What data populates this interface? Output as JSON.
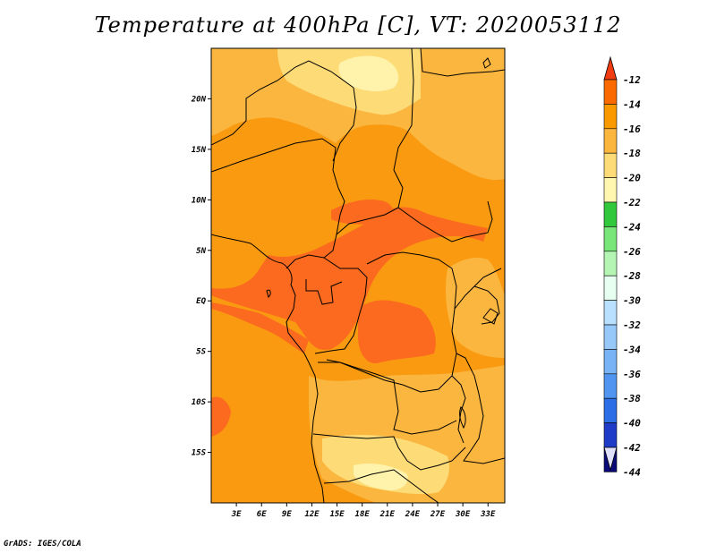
{
  "title": "Temperature at 400hPa [C], VT: 2020053112",
  "credit": "GrADS: IGES/COLA",
  "map": {
    "lat_labels": [
      "20N",
      "15N",
      "10N",
      "5N",
      "EQ",
      "5S",
      "10S",
      "15S"
    ],
    "lat_values": [
      20,
      15,
      10,
      5,
      0,
      -5,
      -10,
      -15
    ],
    "lon_labels": [
      "3E",
      "6E",
      "9E",
      "12E",
      "15E",
      "18E",
      "21E",
      "24E",
      "27E",
      "30E",
      "33E"
    ],
    "lon_values": [
      3,
      6,
      9,
      12,
      15,
      18,
      21,
      24,
      27,
      30,
      33
    ],
    "lon_range": [
      0,
      35
    ],
    "lat_range": [
      -20,
      25
    ]
  },
  "colorbar": {
    "labels": [
      "-12",
      "-14",
      "-16",
      "-18",
      "-20",
      "-22",
      "-24",
      "-26",
      "-28",
      "-30",
      "-32",
      "-34",
      "-36",
      "-38",
      "-40",
      "-42",
      "-44"
    ],
    "colors": [
      "#f04010",
      "#fb6a00",
      "#fa9a00",
      "#fbb640",
      "#fddc78",
      "#fff6b0",
      "#32c83c",
      "#78e678",
      "#b4f5b4",
      "#e6fff0",
      "#b9e0ff",
      "#96c8fa",
      "#78b4f5",
      "#5096f0",
      "#2c6ee6",
      "#1e3cc8",
      "#0a0a78"
    ],
    "top_triangle_color": "#f03c10",
    "bottom_triangle_color": "#e0e0ff"
  },
  "field_colors": {
    "minus12_14": "#fb6a1e",
    "minus14_16": "#fa9a10",
    "minus16_18": "#fbb640",
    "minus18_20": "#fddc78",
    "minus20_22": "#fff3ac"
  }
}
